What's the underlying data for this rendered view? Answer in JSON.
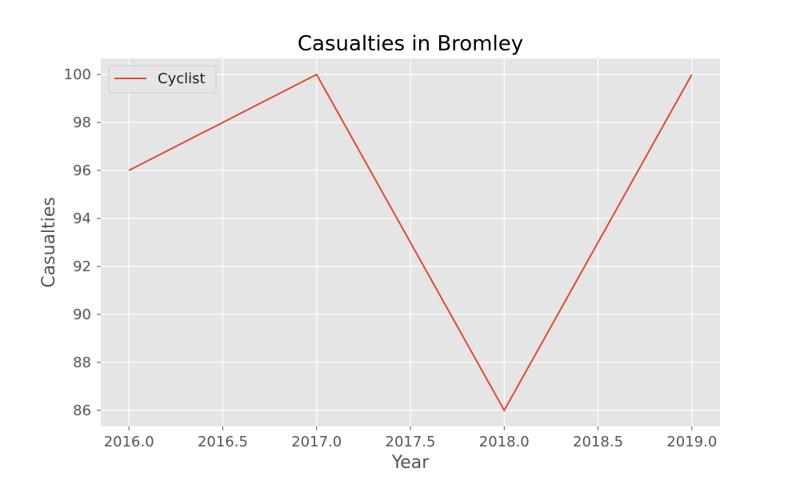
{
  "chart_data": {
    "type": "line",
    "title": "Casualties in Bromley",
    "xlabel": "Year",
    "ylabel": "Casualties",
    "xlim": [
      2015.85,
      2019.15
    ],
    "ylim": [
      85.33,
      100.67
    ],
    "x_ticks": [
      2016.0,
      2016.5,
      2017.0,
      2017.5,
      2018.0,
      2018.5,
      2019.0
    ],
    "x_tick_labels": [
      "2016.0",
      "2016.5",
      "2017.0",
      "2017.5",
      "2018.0",
      "2018.5",
      "2019.0"
    ],
    "y_ticks": [
      86,
      88,
      90,
      92,
      94,
      96,
      98,
      100
    ],
    "y_tick_labels": [
      "86",
      "88",
      "90",
      "92",
      "94",
      "96",
      "98",
      "100"
    ],
    "grid": true,
    "legend_position": "top-left",
    "series": [
      {
        "name": "Cyclist",
        "color": "#E24A33",
        "x": [
          2016,
          2017,
          2018,
          2019
        ],
        "values": [
          96,
          100,
          86,
          100
        ]
      }
    ],
    "colors": {
      "plot_background": "#E5E5E5",
      "grid": "#FFFFFF"
    }
  }
}
